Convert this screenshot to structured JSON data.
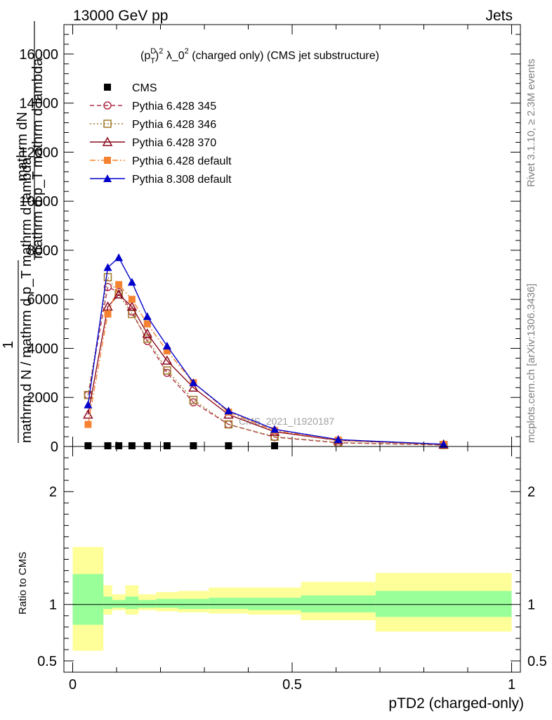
{
  "header": {
    "energy_label": "13000 GeV pp",
    "category_label": "Jets"
  },
  "side_labels": {
    "rivet": "Rivet 3.1.10, ≥ 2.3M events",
    "mcplots": "mcplots.cern.ch [arXiv:1306.3436]"
  },
  "chart_data": [
    {
      "type": "line",
      "panel": "main",
      "title": "(p_T^D)^2 λ_0^2 (charged only) (CMS jet substructure)",
      "title_parts": {
        "p": "(p",
        "sup_d": "D",
        "sub_t": "T",
        "close": ")",
        "sup_2a": "2",
        "mid": " λ_0",
        "sup_2b": "2",
        "tail": " (charged only) (CMS jet substructure)"
      },
      "ylabel_top": "mathrm dN",
      "ylabel_top2": "mathrm d p_T mathrm d lambda",
      "ylabel_bottom": "mathrm d N / mathrm d p_T mathrm d lambda",
      "ylabel_one": "1",
      "watermark": "CMS_2021_I1920187",
      "ylim": [
        0,
        17200
      ],
      "xlim": [
        -0.02,
        1.02
      ],
      "yticks": [
        0,
        2000,
        4000,
        6000,
        8000,
        10000,
        12000,
        14000,
        16000
      ],
      "ytick_labels": [
        "0",
        "2000",
        "4000",
        "6000",
        "8000",
        "10000",
        "12000",
        "14000",
        "16000"
      ],
      "legend_position": "top-left",
      "series": [
        {
          "name": "CMS",
          "color": "#000000",
          "marker": "square-filled",
          "line": "none",
          "x": [
            0.035,
            0.08,
            0.105,
            0.135,
            0.17,
            0.215,
            0.275,
            0.355,
            0.46
          ],
          "y": [
            30,
            30,
            30,
            30,
            30,
            30,
            30,
            30,
            30
          ]
        },
        {
          "name": "Pythia 6.428 345",
          "color": "#b0304a",
          "marker": "circle-open",
          "line": "dashed",
          "x": [
            0.035,
            0.08,
            0.105,
            0.135,
            0.17,
            0.215,
            0.275,
            0.355,
            0.46,
            0.605,
            0.845
          ],
          "y": [
            2100,
            6500,
            6300,
            5500,
            4300,
            3000,
            1800,
            900,
            380,
            150,
            60
          ]
        },
        {
          "name": "Pythia 6.428 346",
          "color": "#a0782a",
          "marker": "square-open",
          "line": "dotted",
          "x": [
            0.035,
            0.08,
            0.105,
            0.135,
            0.17,
            0.215,
            0.275,
            0.355,
            0.46,
            0.605,
            0.845
          ],
          "y": [
            2100,
            6900,
            6200,
            5400,
            4400,
            3100,
            1900,
            900,
            400,
            160,
            60
          ]
        },
        {
          "name": "Pythia 6.428 370",
          "color": "#8b0a1e",
          "marker": "triangle-open",
          "line": "solid",
          "x": [
            0.035,
            0.08,
            0.105,
            0.135,
            0.17,
            0.215,
            0.275,
            0.355,
            0.46,
            0.605,
            0.845
          ],
          "y": [
            1300,
            5700,
            6200,
            5700,
            4600,
            3500,
            2400,
            1300,
            600,
            250,
            80
          ]
        },
        {
          "name": "Pythia 6.428 default",
          "color": "#f58231",
          "marker": "square-filled",
          "line": "dashdot",
          "x": [
            0.035,
            0.08,
            0.105,
            0.135,
            0.17,
            0.215,
            0.275,
            0.355,
            0.46,
            0.605,
            0.845
          ],
          "y": [
            900,
            5400,
            6600,
            6000,
            5000,
            3900,
            2600,
            1400,
            650,
            260,
            80
          ]
        },
        {
          "name": "Pythia 8.308 default",
          "color": "#0000cc",
          "marker": "triangle-filled",
          "line": "solid",
          "x": [
            0.035,
            0.08,
            0.105,
            0.135,
            0.17,
            0.215,
            0.275,
            0.355,
            0.46,
            0.605,
            0.845
          ],
          "y": [
            1700,
            7300,
            7700,
            6700,
            5300,
            4100,
            2600,
            1450,
            700,
            280,
            90
          ]
        }
      ]
    },
    {
      "type": "area",
      "panel": "ratio",
      "ylabel": "Ratio to CMS",
      "xlabel": "pTD2 (charged-only)",
      "ylim": [
        0.4,
        2.4
      ],
      "yticks": [
        0.5,
        1,
        2
      ],
      "ytick_labels": [
        "0.5",
        "1",
        "2"
      ],
      "xticks": [
        0,
        0.5,
        1
      ],
      "xtick_labels": [
        "0",
        "0.5",
        "1"
      ],
      "reference_line": 1,
      "bins": [
        {
          "lo": 0.0,
          "hi": 0.07,
          "inner": [
            0.82,
            1.27
          ],
          "outer": [
            0.59,
            1.51
          ]
        },
        {
          "lo": 0.07,
          "hi": 0.09,
          "inner": [
            0.96,
            1.07
          ],
          "outer": [
            0.91,
            1.17
          ]
        },
        {
          "lo": 0.09,
          "hi": 0.12,
          "inner": [
            0.97,
            1.04
          ],
          "outer": [
            0.95,
            1.09
          ]
        },
        {
          "lo": 0.12,
          "hi": 0.15,
          "inner": [
            0.96,
            1.07
          ],
          "outer": [
            0.91,
            1.17
          ]
        },
        {
          "lo": 0.15,
          "hi": 0.19,
          "inner": [
            0.97,
            1.04
          ],
          "outer": [
            0.95,
            1.09
          ]
        },
        {
          "lo": 0.19,
          "hi": 0.24,
          "inner": [
            0.97,
            1.05
          ],
          "outer": [
            0.94,
            1.11
          ]
        },
        {
          "lo": 0.24,
          "hi": 0.31,
          "inner": [
            0.96,
            1.05
          ],
          "outer": [
            0.93,
            1.12
          ]
        },
        {
          "lo": 0.31,
          "hi": 0.4,
          "inner": [
            0.96,
            1.06
          ],
          "outer": [
            0.92,
            1.15
          ]
        },
        {
          "lo": 0.4,
          "hi": 0.52,
          "inner": [
            0.95,
            1.06
          ],
          "outer": [
            0.91,
            1.15
          ]
        },
        {
          "lo": 0.52,
          "hi": 0.69,
          "inner": [
            0.93,
            1.08
          ],
          "outer": [
            0.86,
            1.2
          ]
        },
        {
          "lo": 0.69,
          "hi": 1.0,
          "inner": [
            0.89,
            1.12
          ],
          "outer": [
            0.76,
            1.28
          ]
        }
      ]
    }
  ]
}
